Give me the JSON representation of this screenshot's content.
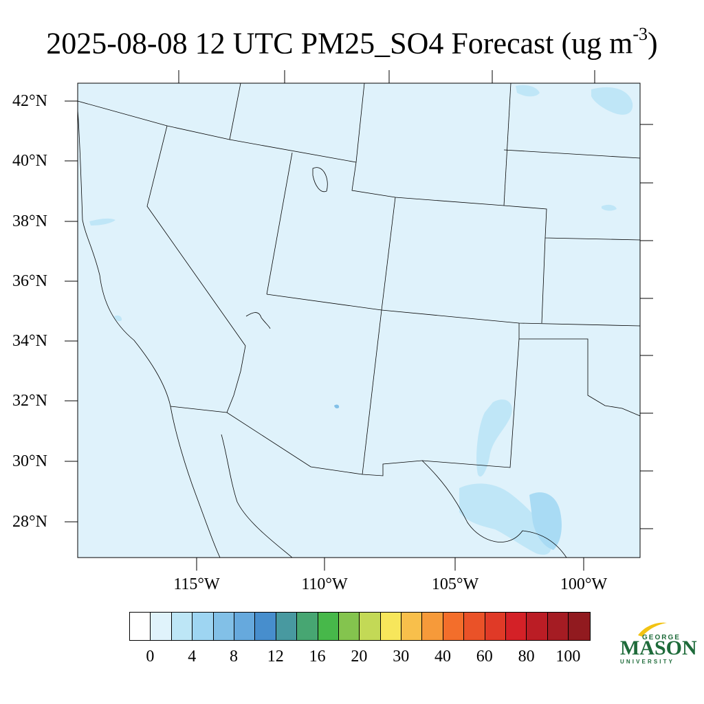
{
  "title": {
    "main": "2025-08-08 12 UTC PM25_SO4 Forecast (ug m",
    "superscript": "-3",
    "close": ")"
  },
  "map": {
    "background_color": "#dff2fb",
    "light_patch_color": "#bfe6f7",
    "mid_patch_color": "#9fd3f2",
    "outline_color": "#000000"
  },
  "lat_labels": [
    "42°N",
    "40°N",
    "38°N",
    "36°N",
    "34°N",
    "32°N",
    "30°N",
    "28°N"
  ],
  "lon_labels": [
    "115°W",
    "110°W",
    "105°W",
    "100°W"
  ],
  "colorbar": {
    "colors": [
      "#ffffff",
      "#e0f3fb",
      "#bde6f6",
      "#9ed5f2",
      "#82c0e7",
      "#66a9dd",
      "#478ecd",
      "#4899a0",
      "#47a672",
      "#47b84a",
      "#84c44e",
      "#c3d956",
      "#f7e65b",
      "#f8bf4b",
      "#f69a3a",
      "#f36e2b",
      "#ea5228",
      "#e03a27",
      "#d42127",
      "#bb1d25",
      "#a51c23",
      "#911a1f"
    ],
    "labels": [
      "0",
      "4",
      "8",
      "12",
      "16",
      "20",
      "30",
      "40",
      "60",
      "80",
      "100"
    ]
  },
  "logo": {
    "line1": "GEORGE",
    "line2": "MASON",
    "line3": "UNIVERSITY",
    "color": "#1e6b3a",
    "accent_color": "#f2c313"
  }
}
